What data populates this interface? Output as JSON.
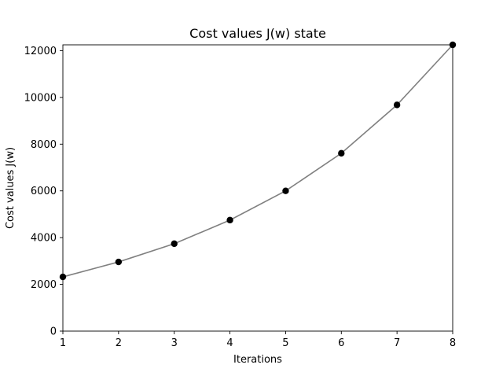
{
  "chart_data": {
    "type": "line",
    "title": "Cost values J(w) state",
    "xlabel": "Iterations",
    "ylabel": "Cost values J(w)",
    "x": [
      1,
      2,
      3,
      4,
      5,
      6,
      7,
      8
    ],
    "series": [
      {
        "values": [
          2320,
          2960,
          3740,
          4750,
          6000,
          7610,
          9680,
          12250
        ],
        "line_color": "#808080",
        "marker_color": "#000000"
      }
    ],
    "xlim": [
      1,
      8
    ],
    "ylim": [
      0,
      12250
    ],
    "xticks": [
      1,
      2,
      3,
      4,
      5,
      6,
      7,
      8
    ],
    "yticks": [
      0,
      2000,
      4000,
      6000,
      8000,
      10000,
      12000
    ],
    "grid": false,
    "legend": "none"
  }
}
